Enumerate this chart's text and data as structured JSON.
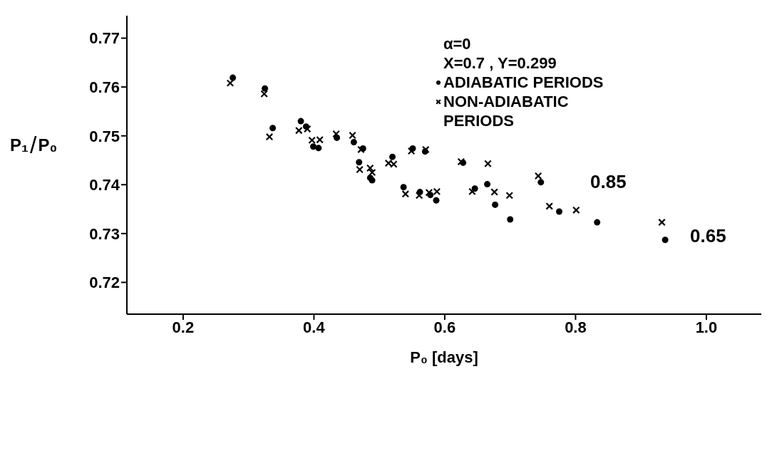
{
  "chart_data": {
    "type": "scatter",
    "xlabel": "P₀ [days]",
    "ylabel": "P₁/P₀",
    "xlim": [
      0.114,
      1.084
    ],
    "ylim": [
      0.7135,
      0.7746
    ],
    "xticks": [
      0.2,
      0.4,
      0.6,
      0.8,
      {
        "value": 1.0,
        "label": "1.0"
      }
    ],
    "yticks": [
      0.72,
      0.73,
      0.74,
      0.75,
      0.76,
      0.77
    ],
    "grid": false,
    "legend": "top right",
    "series": [
      {
        "name": "ADIABATIC PERIODS",
        "color": "#000000",
        "marker": "circle",
        "x": [
          0.276,
          0.325,
          0.337,
          0.38,
          0.388,
          0.399,
          0.407,
          0.435,
          0.461,
          0.469,
          0.475,
          0.486,
          0.489,
          0.52,
          0.537,
          0.551,
          0.562,
          0.57,
          0.578,
          0.587,
          0.628,
          0.646,
          0.665,
          0.677,
          0.7,
          0.747,
          0.775,
          0.833,
          0.937
        ],
        "values": [
          0.7619,
          0.7597,
          0.7516,
          0.753,
          0.7519,
          0.7478,
          0.7475,
          0.7496,
          0.7487,
          0.7446,
          0.7474,
          0.7414,
          0.7409,
          0.7457,
          0.7395,
          0.7474,
          0.7385,
          0.7468,
          0.7379,
          0.7368,
          0.7445,
          0.7392,
          0.7401,
          0.7359,
          0.7329,
          0.7405,
          0.7345,
          0.7323,
          0.7287
        ]
      },
      {
        "name": "NON-ADIABATIC PERIODS",
        "color": "#000000",
        "marker": "cross",
        "x": [
          0.272,
          0.324,
          0.332,
          0.377,
          0.39,
          0.397,
          0.409,
          0.434,
          0.459,
          0.472,
          0.47,
          0.489,
          0.486,
          0.514,
          0.522,
          0.54,
          0.549,
          0.561,
          0.571,
          0.576,
          0.588,
          0.625,
          0.642,
          0.666,
          0.676,
          0.699,
          0.743,
          0.76,
          0.801,
          0.932
        ],
        "values": [
          0.7608,
          0.7586,
          0.7498,
          0.7511,
          0.7514,
          0.7491,
          0.7492,
          0.7504,
          0.7501,
          0.7472,
          0.7431,
          0.7425,
          0.7434,
          0.7444,
          0.7442,
          0.7381,
          0.7469,
          0.7378,
          0.7472,
          0.7384,
          0.7386,
          0.7447,
          0.7386,
          0.7443,
          0.7385,
          0.7378,
          0.7418,
          0.7356,
          0.7348,
          0.7323
        ]
      }
    ],
    "annotations": [
      "α=0",
      "X=0.7   , Y=0.299",
      "0.85",
      "0.65"
    ]
  }
}
